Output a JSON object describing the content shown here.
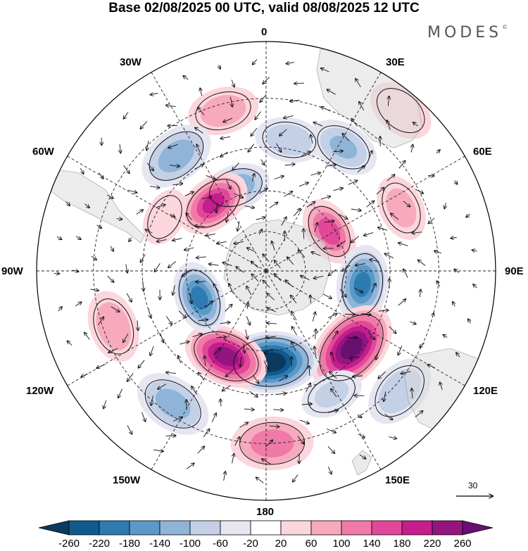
{
  "header": {
    "title": "Base 02/08/2025 00 UTC, valid 08/08/2025 12 UTC",
    "brand": "MODES",
    "brand_mark": "©"
  },
  "map": {
    "projection": "south-polar-stereographic",
    "longitude_labels": [
      "0",
      "30E",
      "60E",
      "90E",
      "120E",
      "150E",
      "180",
      "150W",
      "120W",
      "90W",
      "60W",
      "30W"
    ],
    "field": "geopotential-height-anomaly",
    "anomaly_centers": [
      {
        "name": "pos-southatlantic-north",
        "lon": -15,
        "lat": -32,
        "value": 80
      },
      {
        "name": "neg-near-0",
        "lon": 10,
        "lat": -42,
        "value": -90
      },
      {
        "name": "neg-near-30e",
        "lon": 32,
        "lat": -38,
        "value": -100
      },
      {
        "name": "neg-near-40w",
        "lon": -38,
        "lat": -38,
        "value": -130
      },
      {
        "name": "neg-southatlantic",
        "lon": -20,
        "lat": -57,
        "value": -140
      },
      {
        "name": "pos-weddell",
        "lon": -38,
        "lat": -58,
        "value": 190
      },
      {
        "name": "pos-indian-east",
        "lon": 65,
        "lat": -37,
        "value": 70
      },
      {
        "name": "pos-southindian",
        "lon": 58,
        "lat": -62,
        "value": 160
      },
      {
        "name": "neg-south-australia",
        "lon": 98,
        "lat": -54,
        "value": -190
      },
      {
        "name": "pos-new-zealand",
        "lon": 132,
        "lat": -48,
        "value": 280
      },
      {
        "name": "neg-ross-sea",
        "lon": 177,
        "lat": -56,
        "value": -300
      },
      {
        "name": "neg-east-australia",
        "lon": 132,
        "lat": -28,
        "value": -90
      },
      {
        "name": "pos-southpacific-west",
        "lon": -155,
        "lat": -55,
        "value": 240
      },
      {
        "name": "neg-amundsen",
        "lon": -112,
        "lat": -63,
        "value": -190
      },
      {
        "name": "pos-pacific-north",
        "lon": 178,
        "lat": -30,
        "value": 130
      },
      {
        "name": "neg-southpacific-east",
        "lon": -145,
        "lat": -33,
        "value": -120
      },
      {
        "name": "pos-eastpacific",
        "lon": -110,
        "lat": -33,
        "value": 90
      },
      {
        "name": "pos-drake",
        "lon": -62,
        "lat": -48,
        "value": 50
      },
      {
        "name": "neg-tasman",
        "lon": 152,
        "lat": -40,
        "value": -60
      },
      {
        "name": "pos-madagascar",
        "lon": 40,
        "lat": -20,
        "value": 40
      }
    ],
    "reference_vector": {
      "value": "30"
    }
  },
  "colorbar": {
    "labels": [
      "-260",
      "-220",
      "-180",
      "-140",
      "-100",
      "-60",
      "-20",
      "20",
      "60",
      "100",
      "140",
      "180",
      "220",
      "260"
    ],
    "colors": [
      "#0b3a5e",
      "#115a8e",
      "#2e7bb2",
      "#5a9ac8",
      "#8fb4d8",
      "#c3d0e6",
      "#e5e6f2",
      "#ffffff",
      "#fbd6dc",
      "#f7a9bd",
      "#ef7aa8",
      "#e2489a",
      "#c41d8c",
      "#951580",
      "#6a0f72"
    ]
  }
}
